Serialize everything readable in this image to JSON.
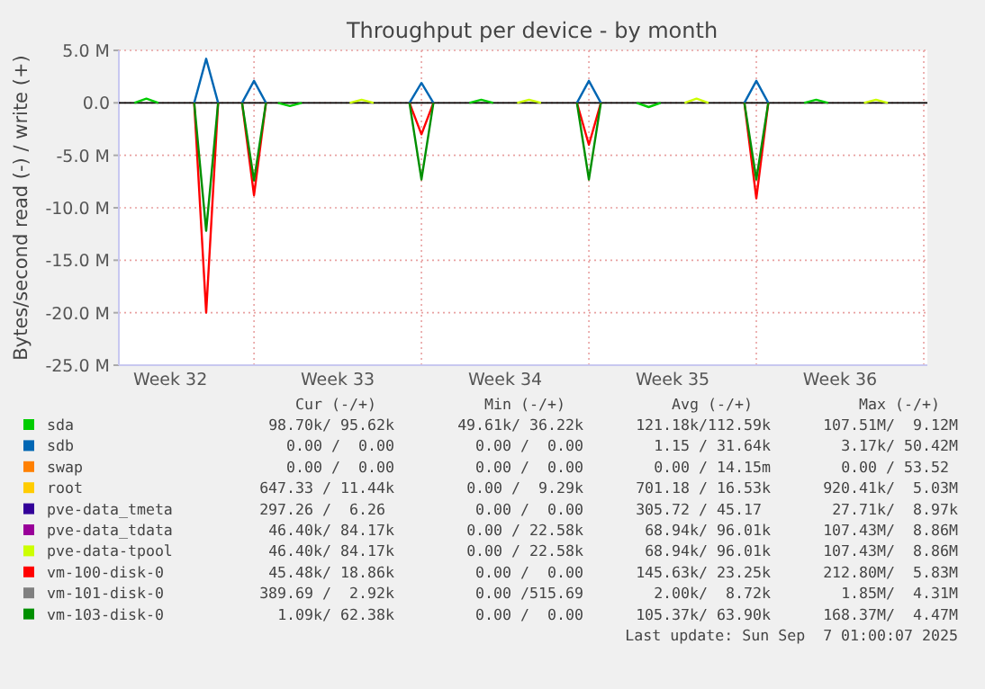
{
  "chart_data": {
    "type": "line",
    "title": "Throughput per device - by month",
    "ylabel": "Bytes/second read (-) / write (+)",
    "categories": [
      null,
      null,
      null,
      null,
      "Week 32",
      null,
      null,
      null,
      null,
      null,
      null,
      null,
      null,
      null,
      null,
      null,
      null,
      null,
      "Week 33",
      null,
      null,
      null,
      null,
      null,
      null,
      null,
      null,
      null,
      null,
      null,
      null,
      null,
      "Week 34",
      null,
      null,
      null,
      null,
      null,
      null,
      null,
      null,
      null,
      null,
      null,
      null,
      null,
      "Week 35",
      null,
      null,
      null,
      null,
      null,
      null,
      null,
      null,
      null,
      null,
      null,
      null,
      null,
      "Week 36",
      null,
      null,
      null,
      null,
      null,
      null,
      null
    ],
    "ylim": [
      -25,
      5
    ],
    "yticks": [
      {
        "value": 5,
        "label": "5.0 M"
      },
      {
        "value": 0,
        "label": "0.0"
      },
      {
        "value": -5,
        "label": "-5.0 M"
      },
      {
        "value": -10,
        "label": "-10.0 M"
      },
      {
        "value": -15,
        "label": "-15.0 M"
      },
      {
        "value": -20,
        "label": "-20.0 M"
      },
      {
        "value": -25,
        "label": "-25.0 M"
      }
    ],
    "grid": true,
    "legend": "bottom",
    "line_style": "solid",
    "series": [
      {
        "name": "sda",
        "color": "#00cc00",
        "values": [
          null,
          0,
          0.4,
          0,
          null,
          null,
          null,
          null,
          null,
          null,
          null,
          null,
          null,
          0,
          -0.3,
          0,
          null,
          null,
          null,
          null,
          null,
          null,
          null,
          null,
          null,
          null,
          null,
          null,
          null,
          0,
          0.3,
          0,
          null,
          null,
          null,
          null,
          null,
          null,
          null,
          null,
          null,
          null,
          null,
          0,
          -0.4,
          0,
          null,
          null,
          null,
          null,
          null,
          null,
          null,
          null,
          null,
          null,
          null,
          0,
          0.3,
          0,
          null,
          null,
          null,
          null,
          null,
          null,
          null,
          null
        ]
      },
      {
        "name": "sdb",
        "color": "#0066b3",
        "values": [
          null,
          null,
          null,
          null,
          null,
          null,
          0,
          4.2,
          0,
          null,
          0,
          2.1,
          0,
          null,
          null,
          null,
          null,
          null,
          null,
          null,
          null,
          null,
          null,
          null,
          0,
          1.9,
          0,
          null,
          null,
          null,
          null,
          null,
          null,
          null,
          null,
          null,
          null,
          null,
          0,
          2.1,
          0,
          null,
          null,
          null,
          null,
          null,
          null,
          null,
          null,
          null,
          null,
          null,
          0,
          2.1,
          0,
          null,
          null,
          null,
          null,
          null,
          null,
          null,
          null,
          null,
          null,
          null,
          null,
          null
        ]
      },
      {
        "name": "swap",
        "color": "#ff8000",
        "values": [
          null,
          null,
          null,
          null,
          null,
          null,
          null,
          null,
          null,
          null,
          null,
          null,
          null,
          null,
          null,
          null,
          null,
          null,
          null,
          null,
          null,
          null,
          null,
          null,
          null,
          null,
          null,
          null,
          null,
          null,
          null,
          null,
          null,
          null,
          null,
          null,
          null,
          null,
          null,
          null,
          null,
          null,
          null,
          null,
          null,
          null,
          null,
          null,
          null,
          null,
          null,
          null,
          null,
          null,
          null,
          null,
          null,
          null,
          null,
          null,
          null,
          null,
          null,
          null,
          null,
          null,
          null,
          null
        ]
      },
      {
        "name": "root",
        "color": "#ffcc00",
        "values": [
          null,
          null,
          null,
          null,
          null,
          null,
          null,
          null,
          null,
          null,
          null,
          null,
          null,
          null,
          null,
          null,
          null,
          null,
          null,
          null,
          null,
          null,
          null,
          null,
          null,
          null,
          null,
          null,
          null,
          null,
          null,
          null,
          null,
          null,
          null,
          null,
          null,
          null,
          null,
          null,
          null,
          null,
          null,
          null,
          null,
          null,
          null,
          null,
          null,
          null,
          null,
          null,
          null,
          null,
          null,
          null,
          null,
          null,
          null,
          null,
          null,
          null,
          null,
          null,
          null,
          null,
          null,
          null
        ]
      },
      {
        "name": "pve-data_tmeta",
        "color": "#330099",
        "values": [
          null,
          null,
          null,
          null,
          null,
          null,
          null,
          null,
          null,
          null,
          null,
          null,
          null,
          null,
          null,
          null,
          null,
          null,
          null,
          null,
          null,
          null,
          null,
          null,
          null,
          null,
          null,
          null,
          null,
          null,
          null,
          null,
          null,
          null,
          null,
          null,
          null,
          null,
          null,
          null,
          null,
          null,
          null,
          null,
          null,
          null,
          null,
          null,
          null,
          null,
          null,
          null,
          null,
          null,
          null,
          null,
          null,
          null,
          null,
          null,
          null,
          null,
          null,
          null,
          null,
          null,
          null,
          null
        ]
      },
      {
        "name": "pve-data_tdata",
        "color": "#990099",
        "values": [
          null,
          null,
          null,
          null,
          null,
          null,
          null,
          null,
          null,
          null,
          null,
          null,
          null,
          null,
          null,
          null,
          null,
          null,
          null,
          null,
          null,
          null,
          null,
          null,
          null,
          null,
          null,
          null,
          null,
          null,
          null,
          null,
          null,
          null,
          null,
          null,
          null,
          null,
          null,
          null,
          null,
          null,
          null,
          null,
          null,
          null,
          null,
          null,
          null,
          null,
          null,
          null,
          null,
          null,
          null,
          null,
          null,
          null,
          null,
          null,
          null,
          null,
          null,
          null,
          null,
          null,
          null,
          null
        ]
      },
      {
        "name": "pve-data-tpool",
        "color": "#ccff00",
        "values": [
          null,
          null,
          null,
          null,
          null,
          null,
          null,
          null,
          null,
          null,
          null,
          null,
          null,
          null,
          null,
          null,
          null,
          null,
          null,
          0,
          0.3,
          0,
          null,
          null,
          null,
          null,
          null,
          null,
          null,
          null,
          null,
          null,
          null,
          0,
          0.3,
          0,
          null,
          null,
          null,
          null,
          null,
          null,
          null,
          null,
          null,
          null,
          null,
          0,
          0.4,
          0,
          null,
          null,
          null,
          null,
          null,
          null,
          null,
          null,
          null,
          null,
          null,
          null,
          0,
          0.3,
          0,
          null,
          null,
          null
        ]
      },
      {
        "name": "vm-100-disk-0",
        "color": "#ff0000",
        "values": [
          null,
          null,
          null,
          null,
          null,
          null,
          0,
          -20,
          0,
          null,
          0,
          -8.8,
          0,
          null,
          null,
          null,
          null,
          null,
          null,
          null,
          null,
          null,
          null,
          null,
          0,
          -3,
          0,
          null,
          null,
          null,
          null,
          null,
          null,
          null,
          null,
          null,
          null,
          null,
          0,
          -4,
          0,
          null,
          null,
          null,
          null,
          null,
          null,
          null,
          null,
          null,
          null,
          null,
          0,
          -9.1,
          0,
          null,
          null,
          null,
          null,
          null,
          null,
          null,
          null,
          null,
          null,
          null,
          null,
          null
        ]
      },
      {
        "name": "vm-101-disk-0",
        "color": "#808080",
        "values": [
          null,
          null,
          null,
          null,
          null,
          null,
          null,
          null,
          null,
          null,
          null,
          null,
          null,
          null,
          null,
          null,
          null,
          null,
          null,
          null,
          null,
          null,
          null,
          null,
          null,
          null,
          null,
          null,
          null,
          null,
          null,
          null,
          null,
          null,
          null,
          null,
          null,
          null,
          null,
          null,
          null,
          null,
          null,
          null,
          null,
          null,
          null,
          null,
          null,
          null,
          null,
          null,
          null,
          null,
          null,
          null,
          null,
          null,
          null,
          null,
          null,
          null,
          null,
          null,
          null,
          null,
          null,
          null
        ]
      },
      {
        "name": "vm-103-disk-0",
        "color": "#008f00",
        "values": [
          null,
          null,
          null,
          null,
          null,
          null,
          0,
          -12.2,
          0,
          null,
          0,
          -7.4,
          0,
          null,
          null,
          null,
          null,
          null,
          null,
          null,
          null,
          null,
          null,
          null,
          0,
          -7.3,
          0,
          null,
          null,
          null,
          null,
          null,
          null,
          null,
          null,
          null,
          null,
          null,
          0,
          -7.3,
          0,
          null,
          null,
          null,
          null,
          null,
          null,
          null,
          null,
          null,
          null,
          null,
          0,
          -7.3,
          0,
          null,
          null,
          null,
          null,
          null,
          null,
          null,
          null,
          null,
          null,
          null,
          null,
          null
        ]
      }
    ],
    "annotations": [
      "Cur (-/+)",
      "Min (-/+)",
      "Avg (-/+)",
      "Max (-/+)",
      "98.70k/ 95.62k",
      "49.61k/ 36.22k",
      "121.18k/112.59k",
      "107.51M/  9.12M",
      "0.00 /  0.00",
      "0.00 /  0.00",
      "1.15 / 31.64k",
      "3.17k/ 50.42M",
      "0.00 /  0.00",
      "0.00 /  0.00",
      "0.00 / 14.15m",
      "0.00 / 53.52 ",
      "647.33 / 11.44k",
      "0.00 /  9.29k",
      "701.18 / 16.53k",
      "920.41k/  5.03M",
      "297.26 /  6.26 ",
      "0.00 /  0.00",
      "305.72 / 45.17 ",
      "27.71k/  8.97k",
      "46.40k/ 84.17k",
      "0.00 / 22.58k",
      "68.94k/ 96.01k",
      "107.43M/  8.86M",
      "46.40k/ 84.17k",
      "0.00 / 22.58k",
      "68.94k/ 96.01k",
      "107.43M/  8.86M",
      "45.48k/ 18.86k",
      "0.00 /  0.00",
      "145.63k/ 23.25k",
      "212.80M/  5.83M",
      "389.69 /  2.92k",
      "0.00 /515.69",
      "2.00k/  8.72k",
      "1.85M/  4.31M",
      "1.09k/ 62.38k",
      "0.00 /  0.00",
      "105.37k/ 63.90k",
      "168.37M/  4.47M",
      "Last update: Sun Sep  7 01:00:07 2025"
    ]
  }
}
